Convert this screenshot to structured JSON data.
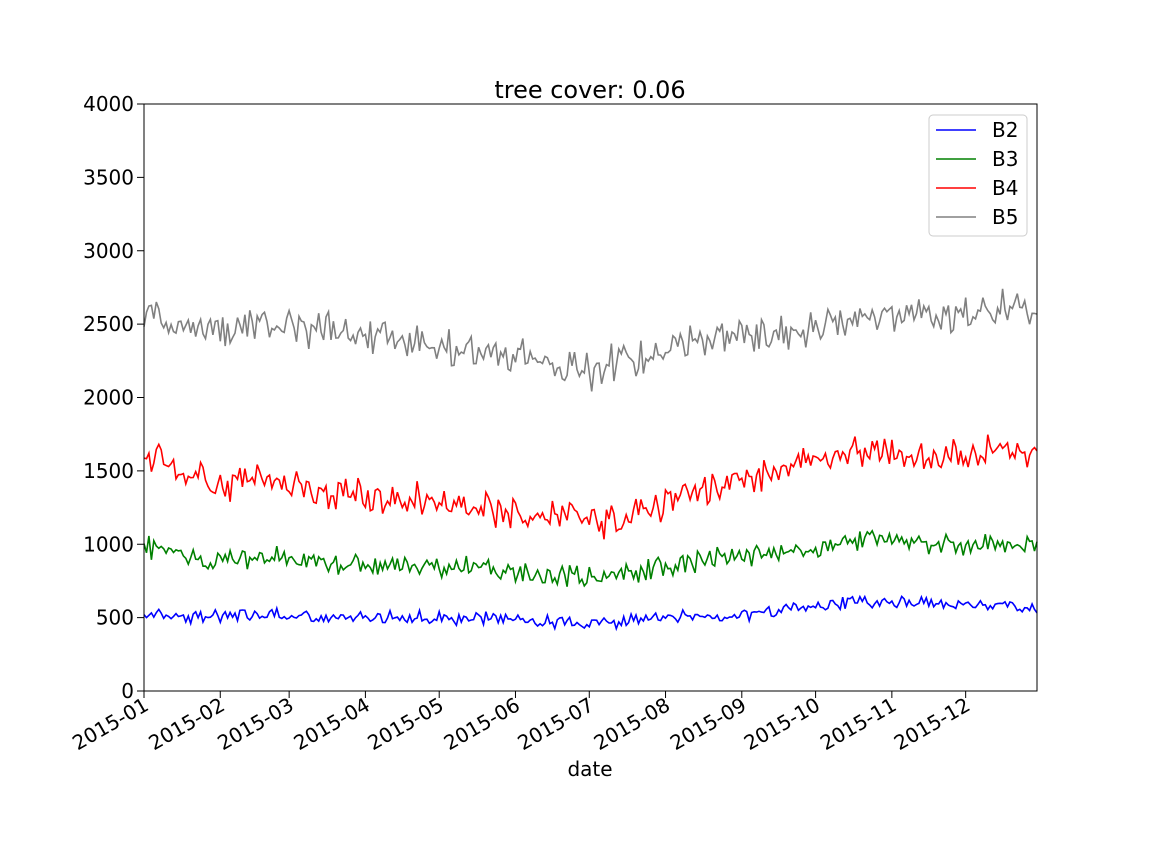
{
  "chart_data": {
    "type": "line",
    "title": "tree cover: 0.06",
    "xlabel": "date",
    "ylabel": "",
    "xlim": [
      "2015-01-01",
      "2015-12-30"
    ],
    "ylim": [
      0,
      4000
    ],
    "x_ticks": [
      "2015-01",
      "2015-02",
      "2015-03",
      "2015-04",
      "2015-05",
      "2015-06",
      "2015-07",
      "2015-08",
      "2015-09",
      "2015-10",
      "2015-11",
      "2015-12"
    ],
    "y_ticks": [
      0,
      500,
      1000,
      1500,
      2000,
      2500,
      3000,
      3500,
      4000
    ],
    "grid": false,
    "legend_position": "top-right",
    "x": [
      "2015-01-01",
      "2015-01-15",
      "2015-01-29",
      "2015-02-12",
      "2015-02-26",
      "2015-03-12",
      "2015-03-26",
      "2015-04-09",
      "2015-04-23",
      "2015-05-07",
      "2015-05-21",
      "2015-06-04",
      "2015-06-18",
      "2015-07-02",
      "2015-07-16",
      "2015-07-30",
      "2015-08-13",
      "2015-08-27",
      "2015-09-10",
      "2015-09-24",
      "2015-10-08",
      "2015-10-22",
      "2015-11-05",
      "2015-11-19",
      "2015-12-03",
      "2015-12-17",
      "2015-12-30"
    ],
    "series": [
      {
        "name": "B2",
        "color": "#0000ff",
        "values": [
          540,
          510,
          500,
          520,
          510,
          490,
          500,
          510,
          500,
          490,
          500,
          480,
          460,
          450,
          480,
          490,
          510,
          520,
          530,
          560,
          590,
          620,
          600,
          590,
          600,
          580,
          560
        ]
      },
      {
        "name": "B3",
        "color": "#008000",
        "values": [
          980,
          920,
          880,
          900,
          900,
          880,
          860,
          850,
          840,
          840,
          840,
          800,
          790,
          770,
          800,
          830,
          880,
          920,
          940,
          960,
          990,
          1020,
          1010,
          990,
          1000,
          1010,
          990
        ]
      },
      {
        "name": "B4",
        "color": "#ff0000",
        "values": [
          1600,
          1500,
          1400,
          1450,
          1450,
          1380,
          1350,
          1320,
          1300,
          1280,
          1250,
          1200,
          1180,
          1150,
          1200,
          1260,
          1380,
          1420,
          1480,
          1540,
          1600,
          1630,
          1620,
          1600,
          1610,
          1660,
          1620
        ]
      },
      {
        "name": "B5",
        "color": "#808080",
        "values": [
          2550,
          2480,
          2450,
          2500,
          2480,
          2470,
          2450,
          2400,
          2350,
          2320,
          2300,
          2280,
          2200,
          2180,
          2260,
          2300,
          2380,
          2420,
          2430,
          2450,
          2500,
          2560,
          2560,
          2550,
          2560,
          2620,
          2580
        ]
      }
    ]
  }
}
